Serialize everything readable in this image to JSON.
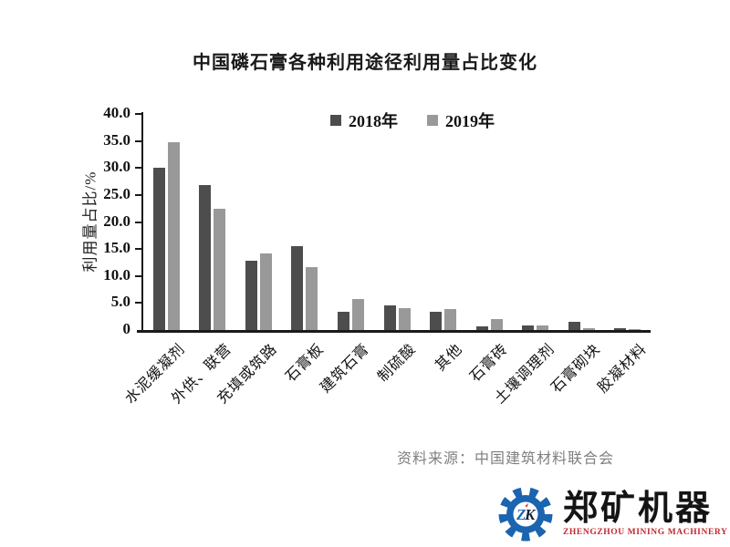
{
  "chart_data": {
    "type": "bar",
    "title": "中国磷石膏各种利用途径利用量占比变化",
    "ylabel": "利用量占比/%",
    "xlabel": "",
    "ylim": [
      0,
      40
    ],
    "ytick_step": 5,
    "ytick_labels": [
      "0",
      "5.0",
      "10.0",
      "15.0",
      "20.0",
      "25.0",
      "30.0",
      "35.0",
      "40.0"
    ],
    "grid": false,
    "legend_position": "top-center",
    "categories": [
      "水泥缓凝剂",
      "外供、联营",
      "充填或筑路",
      "石膏板",
      "建筑石膏",
      "制硫酸",
      "其他",
      "石膏砖",
      "土壤调理剂",
      "石膏砌块",
      "胶凝材料"
    ],
    "series": [
      {
        "name": "2018年",
        "color": "#4d4d4d",
        "values": [
          30.0,
          26.8,
          12.9,
          15.5,
          3.4,
          4.6,
          3.4,
          0.6,
          0.9,
          1.5,
          0.3
        ]
      },
      {
        "name": "2019年",
        "color": "#999999",
        "values": [
          34.7,
          22.5,
          14.2,
          11.6,
          5.7,
          4.1,
          3.8,
          2.1,
          0.8,
          0.4,
          0.1
        ]
      }
    ]
  },
  "source_note": "资料来源：中国建筑材料联合会",
  "logo": {
    "monogram_z": "Z",
    "monogram_k": "K",
    "company_cn": "郑矿机器",
    "company_en": "ZHENGZHOU MINING MACHINERY",
    "gear_color": "#1a64b0",
    "accent_red": "#d42b26",
    "text_black": "#141414"
  }
}
